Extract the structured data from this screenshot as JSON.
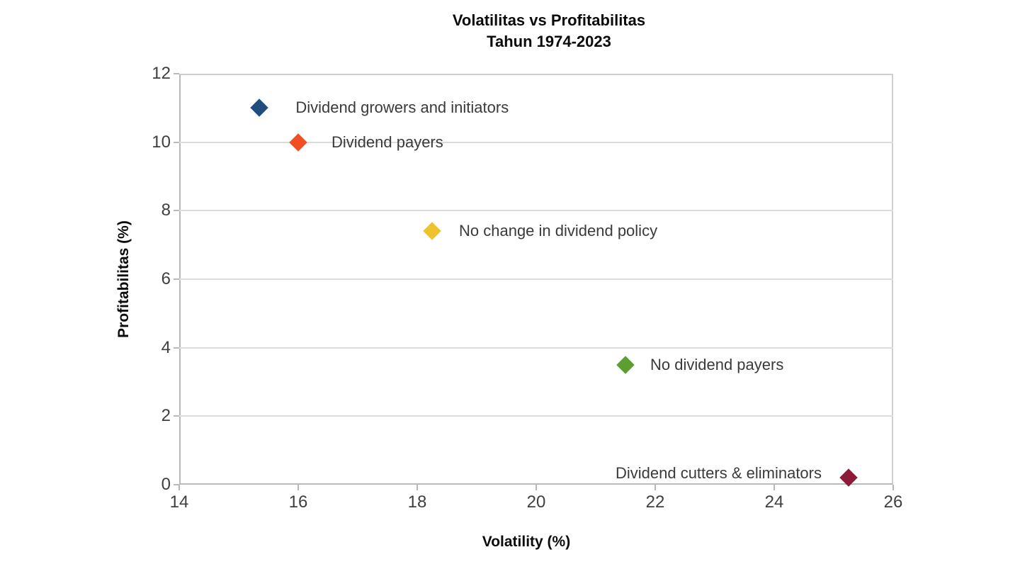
{
  "chart_data": {
    "type": "scatter",
    "title": "Volatilitas vs Profitabilitas",
    "subtitle": "Tahun 1974-2023",
    "xlabel": "Volatility (%)",
    "ylabel": "Profitabilitas (%)",
    "xlim": [
      14,
      26
    ],
    "ylim": [
      0,
      12
    ],
    "x_ticks": [
      14,
      16,
      18,
      20,
      22,
      24,
      26
    ],
    "y_ticks": [
      0,
      2,
      4,
      6,
      8,
      10,
      12
    ],
    "grid": "horizontal-only",
    "legend_position": "none (labels placed next to points)",
    "marker": "diamond",
    "points": [
      {
        "label": "Dividend growers and initiators",
        "x": 15.35,
        "y": 11.0,
        "color": "#1F4E7E",
        "label_side": "right",
        "label_offset": 51,
        "label_dy": 0
      },
      {
        "label": "Dividend payers",
        "x": 16.0,
        "y": 10.0,
        "color": "#F04E23",
        "label_side": "right",
        "label_offset": 47,
        "label_dy": 0
      },
      {
        "label": "No change in dividend policy",
        "x": 18.25,
        "y": 7.4,
        "color": "#EFC32E",
        "label_side": "right",
        "label_offset": 38,
        "label_dy": 0
      },
      {
        "label": "No dividend payers",
        "x": 21.5,
        "y": 3.5,
        "color": "#5C9E31",
        "label_side": "right",
        "label_offset": 35,
        "label_dy": 0
      },
      {
        "label": "Dividend cutters & eliminators",
        "x": 25.25,
        "y": 0.2,
        "color": "#8B1B39",
        "label_side": "left",
        "label_offset": 38,
        "label_dy": -6
      }
    ],
    "colors": {
      "gridline": "#dcdcdc",
      "axis_border": "#cfcfcf",
      "tick": "#b9b9b9",
      "tick_label": "#3f3f3f",
      "point_label": "#3a3a3a",
      "title": "#0b0b0b"
    }
  }
}
